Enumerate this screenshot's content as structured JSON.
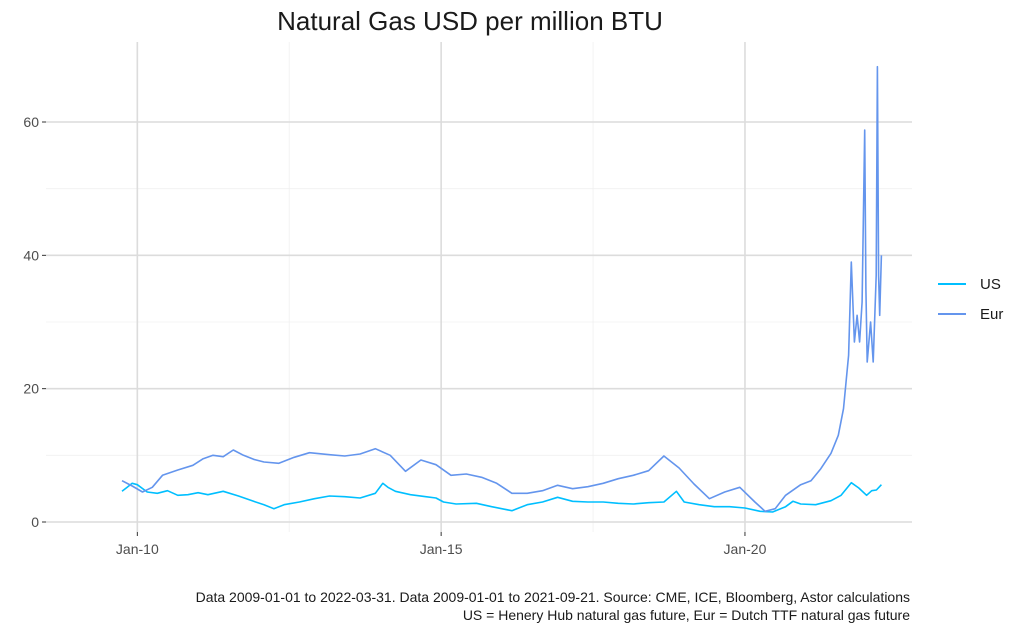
{
  "chart_data": {
    "type": "line",
    "title": "Natural Gas USD per million BTU",
    "xlabel": "",
    "ylabel": "",
    "x_ticks": [
      {
        "date": "2010-01-01",
        "label": "Jan-10"
      },
      {
        "date": "2015-01-01",
        "label": "Jan-15"
      },
      {
        "date": "2020-01-01",
        "label": "Jan-20"
      }
    ],
    "xlim": [
      "2008-07-01",
      "2022-10-01"
    ],
    "y_ticks": [
      0,
      20,
      40,
      60
    ],
    "ylim": [
      -1.5,
      72
    ],
    "grid": true,
    "legend_position": "right",
    "series": [
      {
        "name": "US",
        "color": "#00bfff",
        "points": [
          [
            "2009-10-01",
            4.6
          ],
          [
            "2009-11-01",
            5.2
          ],
          [
            "2009-12-01",
            5.8
          ],
          [
            "2010-01-01",
            5.6
          ],
          [
            "2010-03-01",
            4.5
          ],
          [
            "2010-05-01",
            4.3
          ],
          [
            "2010-07-01",
            4.7
          ],
          [
            "2010-09-01",
            4.0
          ],
          [
            "2010-11-01",
            4.1
          ],
          [
            "2011-01-01",
            4.4
          ],
          [
            "2011-03-01",
            4.1
          ],
          [
            "2011-06-01",
            4.6
          ],
          [
            "2011-09-01",
            3.9
          ],
          [
            "2011-12-01",
            3.1
          ],
          [
            "2012-02-01",
            2.6
          ],
          [
            "2012-04-01",
            2.0
          ],
          [
            "2012-06-01",
            2.6
          ],
          [
            "2012-09-01",
            3.0
          ],
          [
            "2012-12-01",
            3.5
          ],
          [
            "2013-03-01",
            3.9
          ],
          [
            "2013-06-01",
            3.8
          ],
          [
            "2013-09-01",
            3.6
          ],
          [
            "2013-12-01",
            4.3
          ],
          [
            "2014-01-15",
            5.8
          ],
          [
            "2014-02-15",
            5.2
          ],
          [
            "2014-04-01",
            4.6
          ],
          [
            "2014-07-01",
            4.1
          ],
          [
            "2014-10-01",
            3.8
          ],
          [
            "2014-12-01",
            3.6
          ],
          [
            "2015-01-15",
            3.0
          ],
          [
            "2015-04-01",
            2.7
          ],
          [
            "2015-08-01",
            2.8
          ],
          [
            "2015-11-01",
            2.3
          ],
          [
            "2016-03-01",
            1.7
          ],
          [
            "2016-06-01",
            2.6
          ],
          [
            "2016-09-01",
            3.0
          ],
          [
            "2016-12-01",
            3.7
          ],
          [
            "2017-03-01",
            3.1
          ],
          [
            "2017-06-01",
            3.0
          ],
          [
            "2017-09-01",
            3.0
          ],
          [
            "2017-12-01",
            2.8
          ],
          [
            "2018-03-01",
            2.7
          ],
          [
            "2018-06-01",
            2.9
          ],
          [
            "2018-09-01",
            3.0
          ],
          [
            "2018-11-15",
            4.6
          ],
          [
            "2019-01-01",
            3.0
          ],
          [
            "2019-04-01",
            2.6
          ],
          [
            "2019-07-01",
            2.3
          ],
          [
            "2019-10-01",
            2.3
          ],
          [
            "2020-01-01",
            2.1
          ],
          [
            "2020-04-01",
            1.6
          ],
          [
            "2020-06-15",
            1.5
          ],
          [
            "2020-09-01",
            2.3
          ],
          [
            "2020-10-15",
            3.1
          ],
          [
            "2020-12-01",
            2.7
          ],
          [
            "2021-03-01",
            2.6
          ],
          [
            "2021-06-01",
            3.2
          ],
          [
            "2021-08-01",
            4.0
          ],
          [
            "2021-10-01",
            5.9
          ],
          [
            "2021-11-15",
            5.1
          ],
          [
            "2022-01-01",
            4.0
          ],
          [
            "2022-02-01",
            4.7
          ],
          [
            "2022-03-01",
            4.8
          ],
          [
            "2022-03-31",
            5.6
          ]
        ]
      },
      {
        "name": "Eur",
        "color": "#6495ed",
        "points": [
          [
            "2009-10-01",
            6.2
          ],
          [
            "2009-12-01",
            5.4
          ],
          [
            "2010-02-01",
            4.5
          ],
          [
            "2010-04-01",
            5.2
          ],
          [
            "2010-06-01",
            7.0
          ],
          [
            "2010-09-01",
            7.8
          ],
          [
            "2010-12-01",
            8.5
          ],
          [
            "2011-02-01",
            9.5
          ],
          [
            "2011-04-01",
            10.0
          ],
          [
            "2011-06-01",
            9.8
          ],
          [
            "2011-08-01",
            10.8
          ],
          [
            "2011-10-01",
            10.0
          ],
          [
            "2011-12-01",
            9.4
          ],
          [
            "2012-02-01",
            9.0
          ],
          [
            "2012-05-01",
            8.8
          ],
          [
            "2012-08-01",
            9.7
          ],
          [
            "2012-11-01",
            10.4
          ],
          [
            "2013-03-01",
            10.1
          ],
          [
            "2013-06-01",
            9.9
          ],
          [
            "2013-09-01",
            10.2
          ],
          [
            "2013-12-01",
            11.0
          ],
          [
            "2014-03-01",
            10.0
          ],
          [
            "2014-06-01",
            7.6
          ],
          [
            "2014-09-01",
            9.3
          ],
          [
            "2014-12-01",
            8.6
          ],
          [
            "2015-03-01",
            7.0
          ],
          [
            "2015-06-01",
            7.2
          ],
          [
            "2015-09-01",
            6.7
          ],
          [
            "2015-12-01",
            5.8
          ],
          [
            "2016-03-01",
            4.3
          ],
          [
            "2016-06-01",
            4.3
          ],
          [
            "2016-09-01",
            4.7
          ],
          [
            "2016-12-01",
            5.5
          ],
          [
            "2017-03-01",
            5.0
          ],
          [
            "2017-06-01",
            5.3
          ],
          [
            "2017-09-01",
            5.8
          ],
          [
            "2017-12-01",
            6.5
          ],
          [
            "2018-03-01",
            7.0
          ],
          [
            "2018-06-01",
            7.7
          ],
          [
            "2018-09-01",
            9.9
          ],
          [
            "2018-12-01",
            8.1
          ],
          [
            "2019-03-01",
            5.7
          ],
          [
            "2019-06-01",
            3.5
          ],
          [
            "2019-09-01",
            4.5
          ],
          [
            "2019-12-01",
            5.2
          ],
          [
            "2020-03-01",
            3.0
          ],
          [
            "2020-05-01",
            1.6
          ],
          [
            "2020-07-01",
            2.0
          ],
          [
            "2020-09-01",
            4.0
          ],
          [
            "2020-12-01",
            5.6
          ],
          [
            "2021-02-01",
            6.2
          ],
          [
            "2021-04-01",
            8.0
          ],
          [
            "2021-06-01",
            10.3
          ],
          [
            "2021-07-15",
            13.0
          ],
          [
            "2021-08-15",
            17.0
          ],
          [
            "2021-09-15",
            25.0
          ],
          [
            "2021-10-01",
            39.0
          ],
          [
            "2021-10-20",
            27.0
          ],
          [
            "2021-11-05",
            31.0
          ],
          [
            "2021-11-20",
            27.0
          ],
          [
            "2021-12-05",
            33.0
          ],
          [
            "2021-12-21",
            58.8
          ],
          [
            "2021-12-28",
            35.0
          ],
          [
            "2022-01-05",
            24.0
          ],
          [
            "2022-01-25",
            30.0
          ],
          [
            "2022-02-10",
            24.0
          ],
          [
            "2022-02-28",
            37.0
          ],
          [
            "2022-03-07",
            68.3
          ],
          [
            "2022-03-14",
            37.0
          ],
          [
            "2022-03-21",
            31.0
          ],
          [
            "2022-03-31",
            40.0
          ]
        ]
      }
    ],
    "caption_lines": [
      "Data 2009-01-01 to 2022-03-31.  Data 2009-01-01 to 2021-09-21.  Source: CME, ICE, Bloomberg, Astor calculations",
      "US = Henery Hub natural gas future, Eur = Dutch TTF natural gas future"
    ]
  }
}
